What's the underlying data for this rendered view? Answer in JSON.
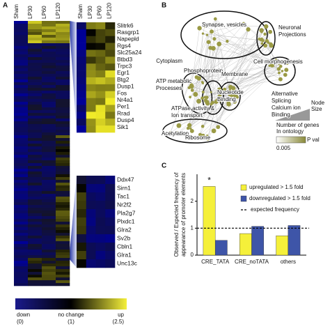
{
  "panel_labels": [
    "A",
    "B",
    "C"
  ],
  "heatmap": {
    "columns": [
      "Sham",
      "LP30",
      "LP60",
      "LP120"
    ],
    "genes_upper": [
      "Slitrk6",
      "Rasgrp1",
      "Napepld",
      "Rgs4",
      "Slc25a24",
      "Btbd3",
      "Trpc3",
      "Egr1",
      "Btg2",
      "Dusp1",
      "Fos",
      "Nr4a1",
      "Per1",
      "Rrad",
      "Dusp4",
      "Sik1"
    ],
    "genes_lower": [
      "Ddx47",
      "Sirn1",
      "Tac1",
      "Nr2f2",
      "Pla2g7",
      "Plxdc1",
      "Glra2",
      "Sv2b",
      "Cbln1",
      "Glra1",
      "Unc13c"
    ],
    "legend": {
      "low": [
        "down",
        "(0)"
      ],
      "mid": [
        "no change",
        "(1)"
      ],
      "high": [
        "up",
        "(2.5)"
      ]
    }
  },
  "network": {
    "labels": [
      [
        "Synapse, vesicles"
      ],
      [
        "Neuronal",
        "Projections"
      ],
      [
        "Cytoplasm"
      ],
      [
        "Phosphoprotein"
      ],
      [
        "Cell morphogenesis"
      ],
      [
        "Membrane"
      ],
      [
        "ATP metabolic",
        "Processes"
      ],
      [
        "Nucleotide",
        "Binding"
      ],
      [
        "Alternative",
        "Splicing"
      ],
      [
        "Calcium ion",
        "Binding"
      ],
      [
        "ATPase activity &",
        "Ion transport"
      ],
      [
        "Acetylation"
      ],
      [
        "Ribosome"
      ]
    ],
    "legend": {
      "size_title": [
        "Node",
        "Size"
      ],
      "size_caption": [
        "Number of genes",
        "In ontology"
      ],
      "color_title": "P val",
      "color_min": "0.005"
    }
  },
  "chart_data": {
    "type": "bar",
    "y_label": [
      "Observed / Expected frequency of",
      "appearance of promoter elements"
    ],
    "categories": [
      "CRE_TATA",
      "CRE_noTATA",
      "others"
    ],
    "series": [
      {
        "name": "upregulated > 1.5 fold",
        "color": "#f5f03a",
        "values": [
          2.55,
          0.8,
          0.72
        ]
      },
      {
        "name": "downregulated > 1.5 fold",
        "color": "#3e55a8",
        "values": [
          0.55,
          1.07,
          1.1
        ]
      }
    ],
    "reference_line": {
      "name": "expected frequency",
      "value": 1
    },
    "annotation": "*",
    "ylim": [
      0,
      3
    ],
    "yticks": [
      0,
      1,
      2
    ]
  }
}
